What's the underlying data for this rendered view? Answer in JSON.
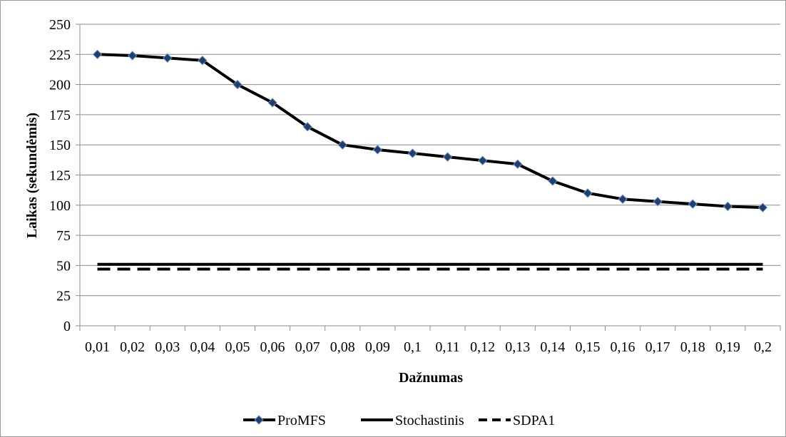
{
  "chart_data": {
    "type": "line",
    "title": "",
    "xlabel": "Dažnumas",
    "ylabel": "Laikas (sekundėmis)",
    "ylim": [
      0,
      250
    ],
    "yticks": [
      0,
      25,
      50,
      75,
      100,
      125,
      150,
      175,
      200,
      225,
      250
    ],
    "grid": "horizontal",
    "legend_position": "bottom",
    "categories": [
      "0,01",
      "0,02",
      "0,03",
      "0,04",
      "0,05",
      "0,06",
      "0,07",
      "0,08",
      "0,09",
      "0,1",
      "0,11",
      "0,12",
      "0,13",
      "0,14",
      "0,15",
      "0,16",
      "0,17",
      "0,18",
      "0,19",
      "0,2"
    ],
    "series": [
      {
        "name": "ProMFS",
        "style": "solid-with-diamond-markers",
        "color": "#000000",
        "marker_color": "#1f3f6e",
        "values": [
          225,
          224,
          222,
          220,
          200,
          185,
          165,
          150,
          146,
          143,
          140,
          137,
          134,
          120,
          110,
          105,
          103,
          101,
          99,
          98
        ]
      },
      {
        "name": "Stochastinis",
        "style": "solid",
        "color": "#000000",
        "values": [
          51,
          51,
          51,
          51,
          51,
          51,
          51,
          51,
          51,
          51,
          51,
          51,
          51,
          51,
          51,
          51,
          51,
          51,
          51,
          51
        ]
      },
      {
        "name": "SDPA1",
        "style": "dashed",
        "color": "#000000",
        "values": [
          47,
          47,
          47,
          47,
          47,
          47,
          47,
          47,
          47,
          47,
          47,
          47,
          47,
          47,
          47,
          47,
          47,
          47,
          47,
          47
        ]
      }
    ]
  }
}
